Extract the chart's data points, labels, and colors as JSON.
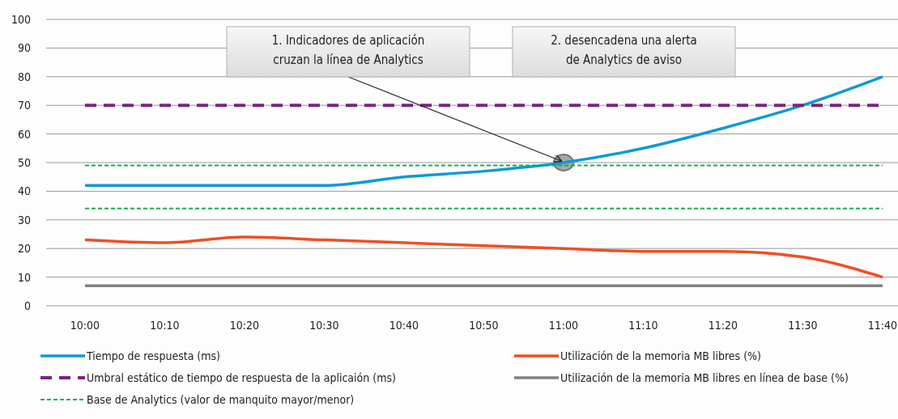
{
  "chart_data": {
    "type": "line",
    "categories": [
      "10:00",
      "10:10",
      "10:20",
      "10:30",
      "10:40",
      "10:50",
      "11:00",
      "11:10",
      "11:20",
      "11:30",
      "11:40"
    ],
    "ylim": [
      0,
      100
    ],
    "yticks": [
      0,
      10,
      20,
      30,
      40,
      50,
      60,
      70,
      80,
      90,
      100
    ],
    "grid": "y",
    "legend": "bottom",
    "marker": "none",
    "series": [
      {
        "name": "Tiempo de respuesta (ms)",
        "color": "#0e9ad7",
        "line_style": "solid",
        "values": [
          42,
          42,
          42,
          42,
          45,
          47,
          50,
          55,
          62,
          70,
          80
        ]
      },
      {
        "name": "Utilización de la memoria MB libres (%)",
        "color": "#f04e23",
        "line_style": "solid",
        "values": [
          23,
          22,
          24,
          23,
          22,
          21,
          20,
          19,
          19,
          17,
          10
        ]
      },
      {
        "name": "Umbral estático de tiempo de respuesta de la aplicaión (ms)",
        "color": "#7b2382",
        "line_style": "dashed",
        "values": [
          70,
          70,
          70,
          70,
          70,
          70,
          70,
          70,
          70,
          70,
          70
        ]
      },
      {
        "name": "Utilización de la memoria MB libres en línea de base (%)",
        "color": "#808080",
        "line_style": "solid",
        "values": [
          7,
          7,
          7,
          7,
          7,
          7,
          7,
          7,
          7,
          7,
          7
        ]
      },
      {
        "name": "Base de Analytics (valor de manquito mayor/menor)",
        "color": "#0db14b",
        "line_style": "dotted",
        "values": [
          49,
          49,
          49,
          49,
          49,
          49,
          49,
          49,
          49,
          49,
          49
        ]
      },
      {
        "color": "#0db14b",
        "line_style": "dotted",
        "values": [
          34,
          34,
          34,
          34,
          34,
          34,
          34,
          34,
          34,
          34,
          34
        ]
      }
    ],
    "annotations": [
      {
        "text": "1. Indicadores de aplicación cruzan la línea de Analytics",
        "x": "11:00",
        "y": 50
      },
      "2. desencadena una alerta de Analytics de aviso"
    ]
  }
}
